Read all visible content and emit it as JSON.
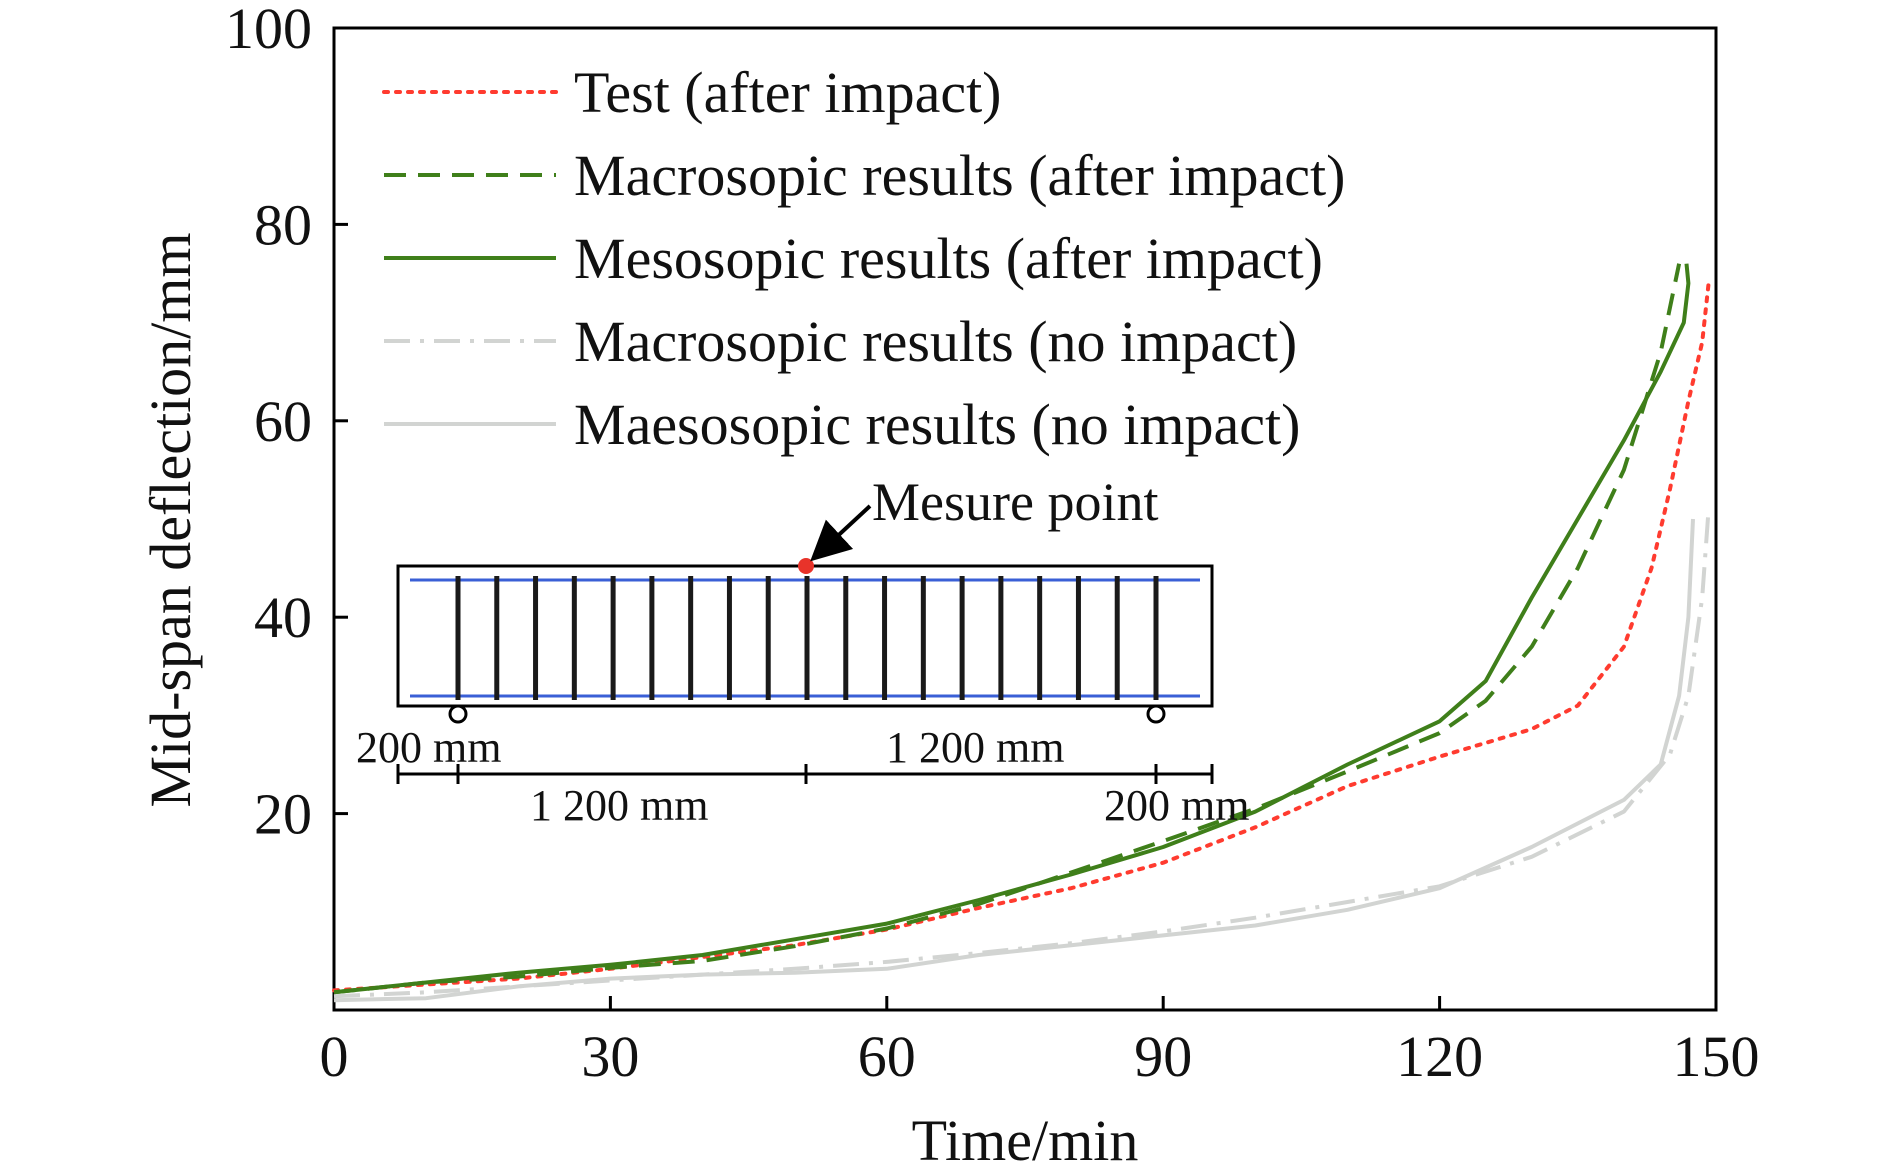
{
  "chart_data": {
    "type": "line",
    "title": "",
    "xlabel": "Time/min",
    "ylabel": "Mid-span deflection/mm",
    "xlim": [
      0,
      150
    ],
    "ylim": [
      0,
      100
    ],
    "x_ticks": [
      "0",
      "30",
      "60",
      "90",
      "120",
      "150"
    ],
    "y_ticks": [
      "20",
      "40",
      "60",
      "80",
      "100"
    ],
    "grid": false,
    "legend_position": "top-left",
    "series": [
      {
        "name": "Test (after impact)",
        "color": "#ff3b2f",
        "style": "dotted",
        "points": [
          [
            0,
            2.0
          ],
          [
            10,
            2.6
          ],
          [
            20,
            3.2
          ],
          [
            30,
            4.2
          ],
          [
            40,
            5.4
          ],
          [
            50,
            6.6
          ],
          [
            60,
            8.2
          ],
          [
            70,
            10.4
          ],
          [
            80,
            12.4
          ],
          [
            90,
            15.0
          ],
          [
            100,
            18.6
          ],
          [
            110,
            22.8
          ],
          [
            120,
            25.8
          ],
          [
            125,
            27.2
          ],
          [
            130,
            28.6
          ],
          [
            135,
            31.0
          ],
          [
            140,
            37.0
          ],
          [
            143,
            45.0
          ],
          [
            145,
            53.0
          ],
          [
            147,
            62.0
          ],
          [
            148.5,
            68.0
          ],
          [
            149.2,
            74.0
          ]
        ]
      },
      {
        "name": "Macrosopic results (after impact)",
        "color": "#3f7f1a",
        "style": "dashed",
        "points": [
          [
            0,
            1.8
          ],
          [
            10,
            2.8
          ],
          [
            20,
            3.4
          ],
          [
            30,
            4.3
          ],
          [
            40,
            5.0
          ],
          [
            50,
            6.5
          ],
          [
            60,
            8.3
          ],
          [
            70,
            10.8
          ],
          [
            80,
            14.0
          ],
          [
            90,
            17.2
          ],
          [
            100,
            20.5
          ],
          [
            110,
            24.3
          ],
          [
            120,
            28.2
          ],
          [
            125,
            31.5
          ],
          [
            130,
            37.0
          ],
          [
            135,
            45.0
          ],
          [
            140,
            55.0
          ],
          [
            144,
            67.0
          ],
          [
            146,
            76.0
          ]
        ]
      },
      {
        "name": "Mesosopic results (after impact)",
        "color": "#3f7f1a",
        "style": "solid",
        "points": [
          [
            0,
            1.8
          ],
          [
            10,
            2.8
          ],
          [
            20,
            3.8
          ],
          [
            30,
            4.6
          ],
          [
            40,
            5.6
          ],
          [
            50,
            7.2
          ],
          [
            60,
            8.8
          ],
          [
            70,
            11.2
          ],
          [
            80,
            13.8
          ],
          [
            90,
            16.6
          ],
          [
            100,
            20.2
          ],
          [
            110,
            25.0
          ],
          [
            120,
            29.4
          ],
          [
            125,
            33.5
          ],
          [
            130,
            42.0
          ],
          [
            135,
            50.0
          ],
          [
            140,
            58.0
          ],
          [
            144,
            65.0
          ],
          [
            146.5,
            70.0
          ],
          [
            147,
            74.0
          ],
          [
            146.8,
            76.0
          ]
        ]
      },
      {
        "name": "Macrosopic results (no impact)",
        "color": "#d2d4d2",
        "style": "dashdot",
        "points": [
          [
            0,
            1.4
          ],
          [
            10,
            1.8
          ],
          [
            20,
            2.4
          ],
          [
            30,
            3.0
          ],
          [
            40,
            3.6
          ],
          [
            50,
            4.2
          ],
          [
            60,
            4.9
          ],
          [
            70,
            5.8
          ],
          [
            80,
            6.8
          ],
          [
            90,
            8.0
          ],
          [
            100,
            9.4
          ],
          [
            110,
            11.0
          ],
          [
            120,
            12.6
          ],
          [
            130,
            15.6
          ],
          [
            140,
            20.2
          ],
          [
            145,
            26.0
          ],
          [
            147,
            32.0
          ],
          [
            148.5,
            42.0
          ],
          [
            149.2,
            51.0
          ]
        ]
      },
      {
        "name": "Maesosopic results (no impact)",
        "color": "#d2d4d2",
        "style": "solid",
        "points": [
          [
            0,
            1.0
          ],
          [
            10,
            1.2
          ],
          [
            20,
            2.4
          ],
          [
            30,
            3.2
          ],
          [
            40,
            3.6
          ],
          [
            50,
            3.8
          ],
          [
            60,
            4.2
          ],
          [
            70,
            5.6
          ],
          [
            80,
            6.6
          ],
          [
            90,
            7.6
          ],
          [
            100,
            8.6
          ],
          [
            110,
            10.2
          ],
          [
            120,
            12.4
          ],
          [
            130,
            16.6
          ],
          [
            140,
            21.4
          ],
          [
            144,
            25.0
          ],
          [
            146,
            32.0
          ],
          [
            147,
            40.0
          ],
          [
            147.5,
            50.0
          ]
        ]
      }
    ],
    "inset": {
      "annotation": "Mesure point",
      "dimensions": [
        "200 mm",
        "1 200 mm",
        "1 200 mm",
        "200 mm"
      ]
    }
  },
  "colors": {
    "axis": "#000000",
    "inset_line": "#3a5fd6",
    "measure_point": "#e8332a"
  }
}
